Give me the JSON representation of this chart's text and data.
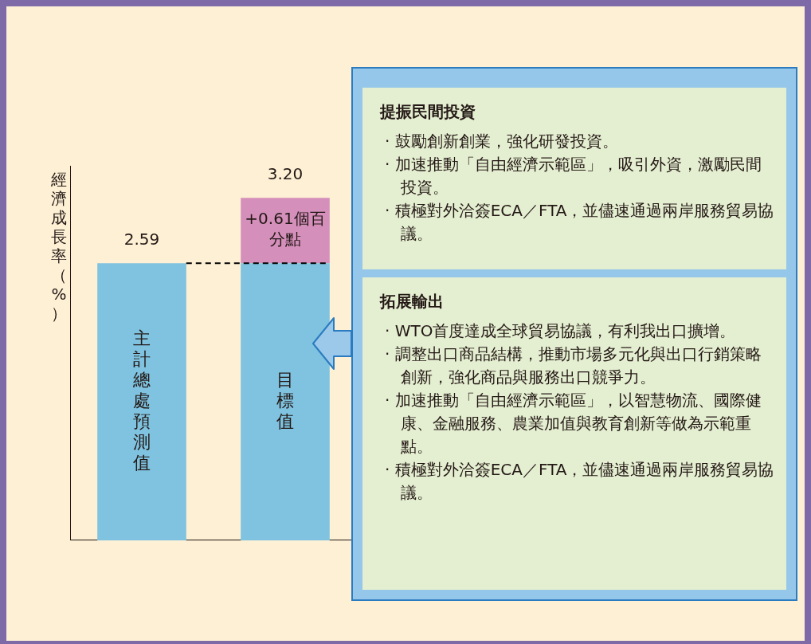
{
  "chart_data": {
    "type": "bar",
    "ylabel": "經濟成長率（%）",
    "categories": [
      "主計總處預測值",
      "目標值"
    ],
    "stacked": true,
    "series": [
      {
        "color": "#7fc3e0",
        "values": [
          2.59,
          2.59
        ]
      },
      {
        "color": "#d48fbb",
        "values": [
          null,
          0.61
        ],
        "value_labels": [
          null,
          "+0.61個百分點"
        ]
      }
    ],
    "totals": [
      "2.59",
      "3.20"
    ],
    "ref_lines": [
      {
        "axis": "y",
        "value": 2.59,
        "line_style": "dashed",
        "color": "#000000"
      }
    ],
    "legend": false,
    "grid": false,
    "tick_labels": false,
    "annotations": [
      "提振民間投資",
      "· 鼓勵創新創業，強化研發投資。",
      "· 加速推動「自由經濟示範區」，吸引外資，激勵民間投資。",
      "· 積極對外洽簽ECA／FTA，並儘速通過兩岸服務貿易協議。",
      "拓展輸出",
      "· WTO首度達成全球貿易協議，有利我出口擴增。",
      "· 調整出口商品結構，推動市場多元化與出口行銷策略創新，強化商品與服務出口競爭力。",
      "· 加速推動「自由經濟示範區」，以智慧物流、國際健康、金融服務、農業加值與教育創新等做為示範重點。",
      "· 積極對外洽簽ECA／FTA，並儘速通過兩岸服務貿易協議。"
    ]
  }
}
